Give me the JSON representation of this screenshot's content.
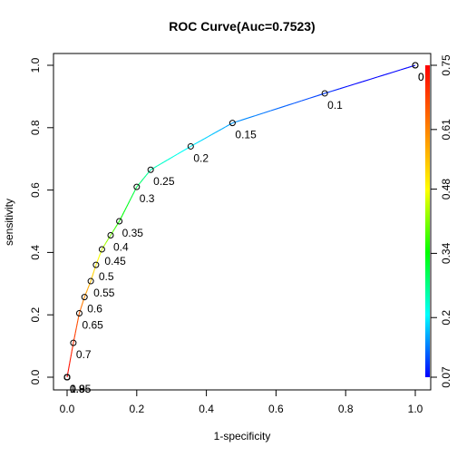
{
  "chart_data": {
    "type": "line",
    "title": "ROC Curve(Auc=0.7523)",
    "xlabel": "1-specificity",
    "ylabel": "sensitivity",
    "xlim": [
      0,
      1
    ],
    "ylim": [
      0,
      1
    ],
    "x_ticks": [
      "0.0",
      "0.2",
      "0.4",
      "0.6",
      "0.8",
      "1.0"
    ],
    "y_ticks": [
      "0.0",
      "0.2",
      "0.4",
      "0.6",
      "0.8",
      "1.0"
    ],
    "grid": false,
    "colorbar": {
      "ticks": [
        "0.07",
        "0.2",
        "0.34",
        "0.48",
        "0.61",
        "0.75"
      ],
      "tick_values": [
        0.07,
        0.2,
        0.34,
        0.48,
        0.61,
        0.75
      ],
      "range": [
        0.07,
        0.75
      ],
      "colors": [
        "#0000ff",
        "#00ffff",
        "#00ff00",
        "#ffff00",
        "#ff8000",
        "#ff0000"
      ]
    },
    "points": [
      {
        "x": 1.0,
        "y": 1.0,
        "threshold": 0.0,
        "label": "0"
      },
      {
        "x": 1.0,
        "y": 1.0,
        "threshold": 0.05,
        "label": "0"
      },
      {
        "x": 0.74,
        "y": 0.91,
        "threshold": 0.1,
        "label": "0.1"
      },
      {
        "x": 0.475,
        "y": 0.815,
        "threshold": 0.15,
        "label": "0.15"
      },
      {
        "x": 0.355,
        "y": 0.74,
        "threshold": 0.2,
        "label": "0.2"
      },
      {
        "x": 0.24,
        "y": 0.665,
        "threshold": 0.25,
        "label": "0.25"
      },
      {
        "x": 0.2,
        "y": 0.61,
        "threshold": 0.3,
        "label": "0.3"
      },
      {
        "x": 0.15,
        "y": 0.5,
        "threshold": 0.35,
        "label": "0.35"
      },
      {
        "x": 0.125,
        "y": 0.455,
        "threshold": 0.4,
        "label": "0.4"
      },
      {
        "x": 0.1,
        "y": 0.41,
        "threshold": 0.45,
        "label": "0.45"
      },
      {
        "x": 0.083,
        "y": 0.36,
        "threshold": 0.5,
        "label": "0.5"
      },
      {
        "x": 0.068,
        "y": 0.308,
        "threshold": 0.55,
        "label": "0.55"
      },
      {
        "x": 0.05,
        "y": 0.257,
        "threshold": 0.6,
        "label": "0.6"
      },
      {
        "x": 0.035,
        "y": 0.205,
        "threshold": 0.65,
        "label": "0.65"
      },
      {
        "x": 0.018,
        "y": 0.11,
        "threshold": 0.7,
        "label": "0.7"
      },
      {
        "x": 0.0,
        "y": 0.0,
        "threshold": 0.75,
        "label": "0.8"
      },
      {
        "x": 0.0,
        "y": 0.0,
        "threshold": 0.75,
        "label": "0.85"
      },
      {
        "x": 0.0,
        "y": 0.0,
        "threshold": 0.75,
        "label": "0.9"
      },
      {
        "x": 0.0,
        "y": 0.0,
        "threshold": 0.75,
        "label": "0.95"
      },
      {
        "x": 0.0,
        "y": 0.0,
        "threshold": 0.75,
        "label": "1"
      }
    ]
  }
}
